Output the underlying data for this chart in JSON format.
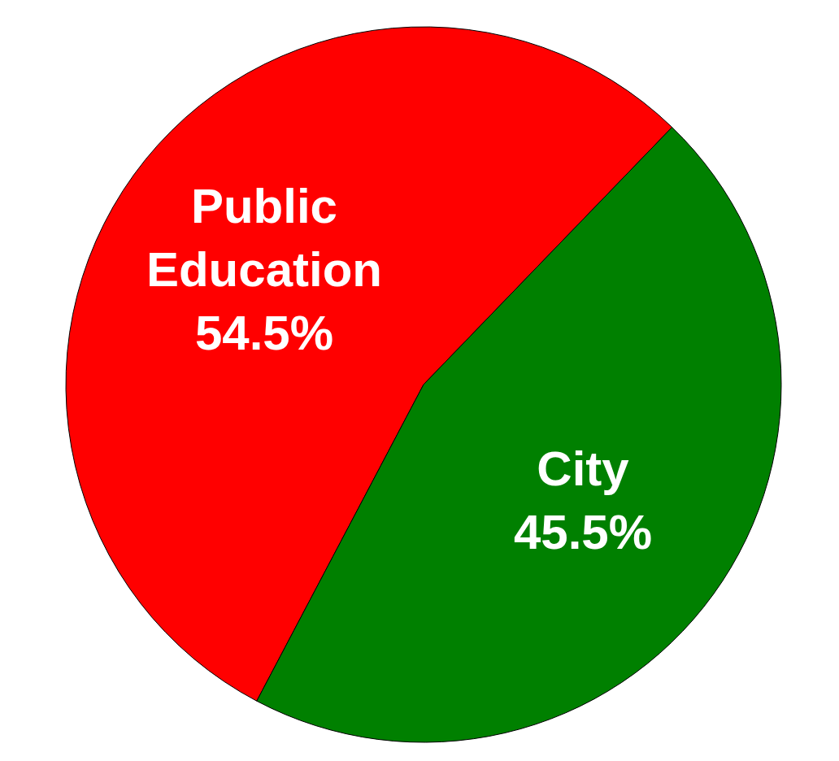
{
  "chart_data": {
    "type": "pie",
    "categories": [
      "Public Education",
      "City"
    ],
    "values": [
      54.5,
      45.5
    ],
    "colors": [
      "#ff0000",
      "#008000"
    ],
    "value_labels": [
      "54.5%",
      "45.5%"
    ]
  }
}
